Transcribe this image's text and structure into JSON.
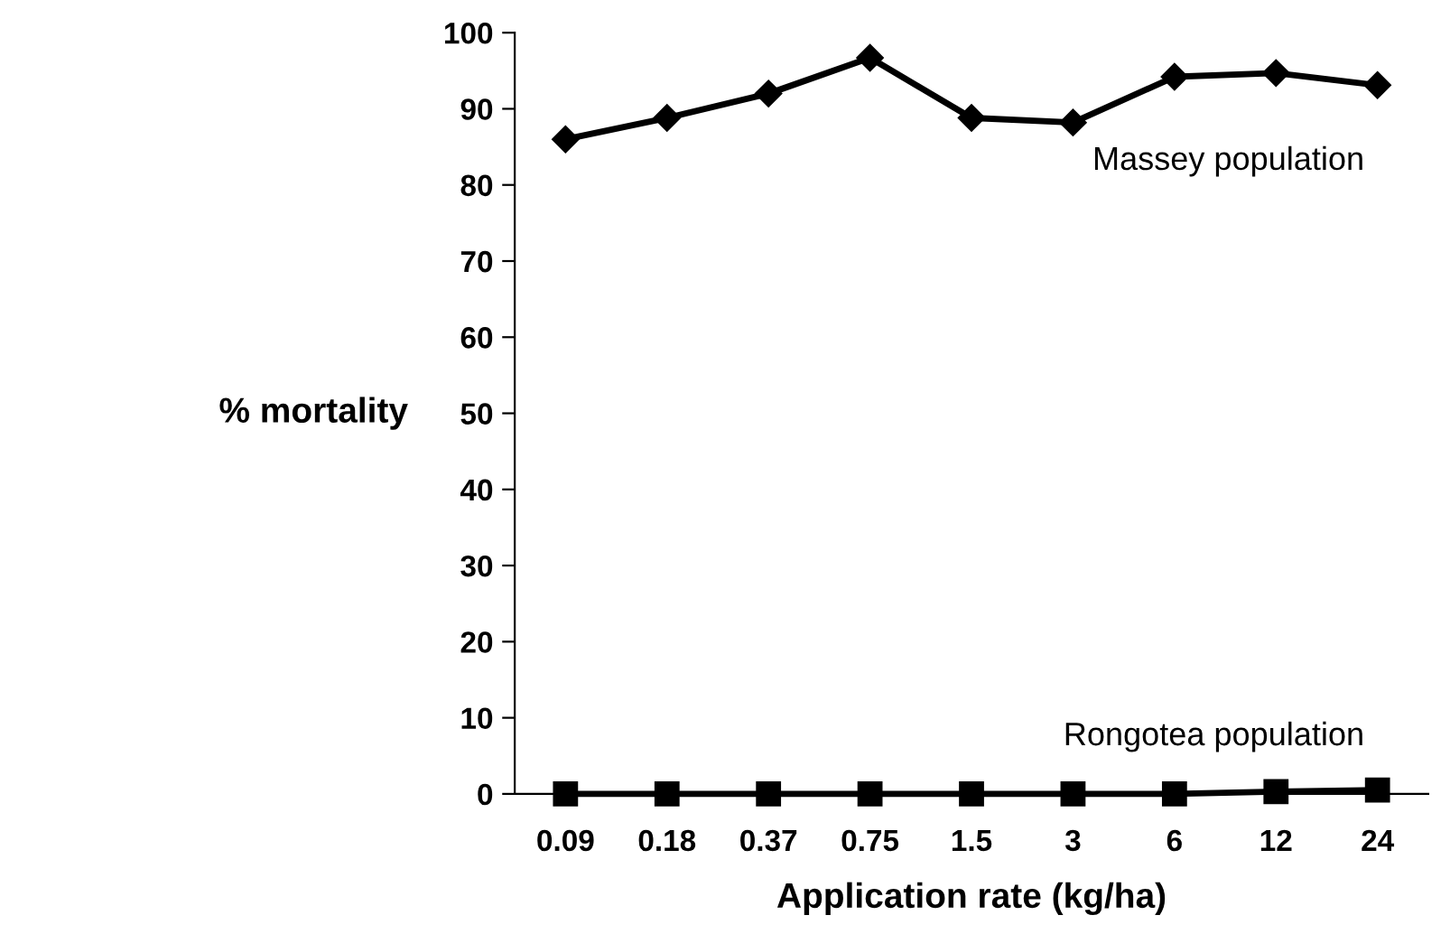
{
  "chart_data": {
    "type": "line",
    "xlabel": "Application rate (kg/ha)",
    "ylabel": "% mortality",
    "categories": [
      "0.09",
      "0.18",
      "0.37",
      "0.75",
      "1.5",
      "3",
      "6",
      "12",
      "24"
    ],
    "series": [
      {
        "name": "Massey population",
        "color": "#000000",
        "marker": "diamond",
        "values": [
          86,
          88.8,
          92,
          96.7,
          88.8,
          88.2,
          94.2,
          94.7,
          93.1
        ]
      },
      {
        "name": "Rongotea population",
        "color": "#000000",
        "marker": "square",
        "values": [
          0,
          0,
          0,
          0,
          0,
          0,
          0,
          0.3,
          0.5
        ]
      }
    ],
    "ylim": [
      0,
      100
    ],
    "yticks": [
      0,
      10,
      20,
      30,
      40,
      50,
      60,
      70,
      80,
      90,
      100
    ],
    "grid": false,
    "legend": false,
    "line_style": "solid"
  }
}
